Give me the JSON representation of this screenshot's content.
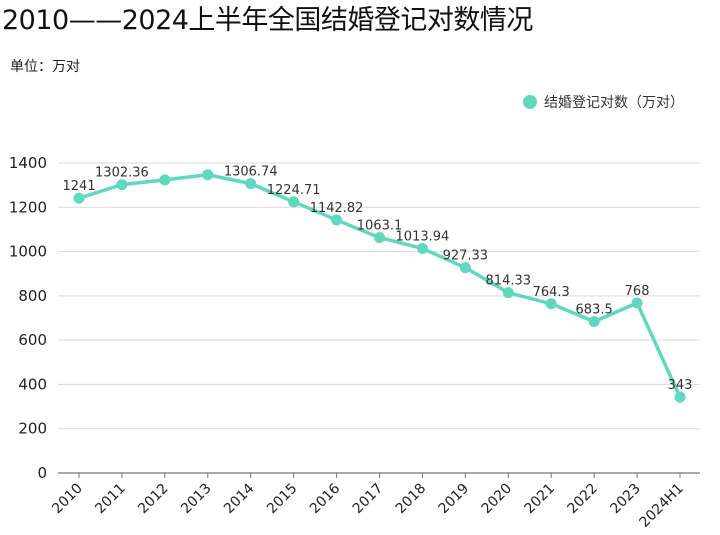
{
  "chart_data": {
    "type": "line",
    "title": "2010——2024上半年全国结婚登记对数情况",
    "subtitle": "单位：万对",
    "xlabel": "",
    "ylabel": "",
    "categories": [
      "2010",
      "2011",
      "2012",
      "2013",
      "2014",
      "2015",
      "2016",
      "2017",
      "2018",
      "2019",
      "2020",
      "2021",
      "2022",
      "2023",
      "2024H1"
    ],
    "series": [
      {
        "name": "结婚登记对数（万对）",
        "color": "#5fd8bd",
        "values": [
          1241,
          1302.36,
          1324,
          1347,
          1306.74,
          1224.71,
          1142.82,
          1063.1,
          1013.94,
          927.33,
          814.33,
          764.3,
          683.5,
          768,
          343
        ],
        "labels": [
          "1241",
          "1302.36",
          "",
          "",
          "1306.74",
          "1224.71",
          "1142.82",
          "1063.1",
          "1013.94",
          "927.33",
          "814.33",
          "764.3",
          "683.5",
          "768",
          "343"
        ]
      }
    ],
    "ylim": [
      0,
      1400
    ],
    "yticks": [
      0,
      200,
      400,
      600,
      800,
      1000,
      1200,
      1400
    ],
    "grid": true,
    "legend_position": "top-right"
  }
}
